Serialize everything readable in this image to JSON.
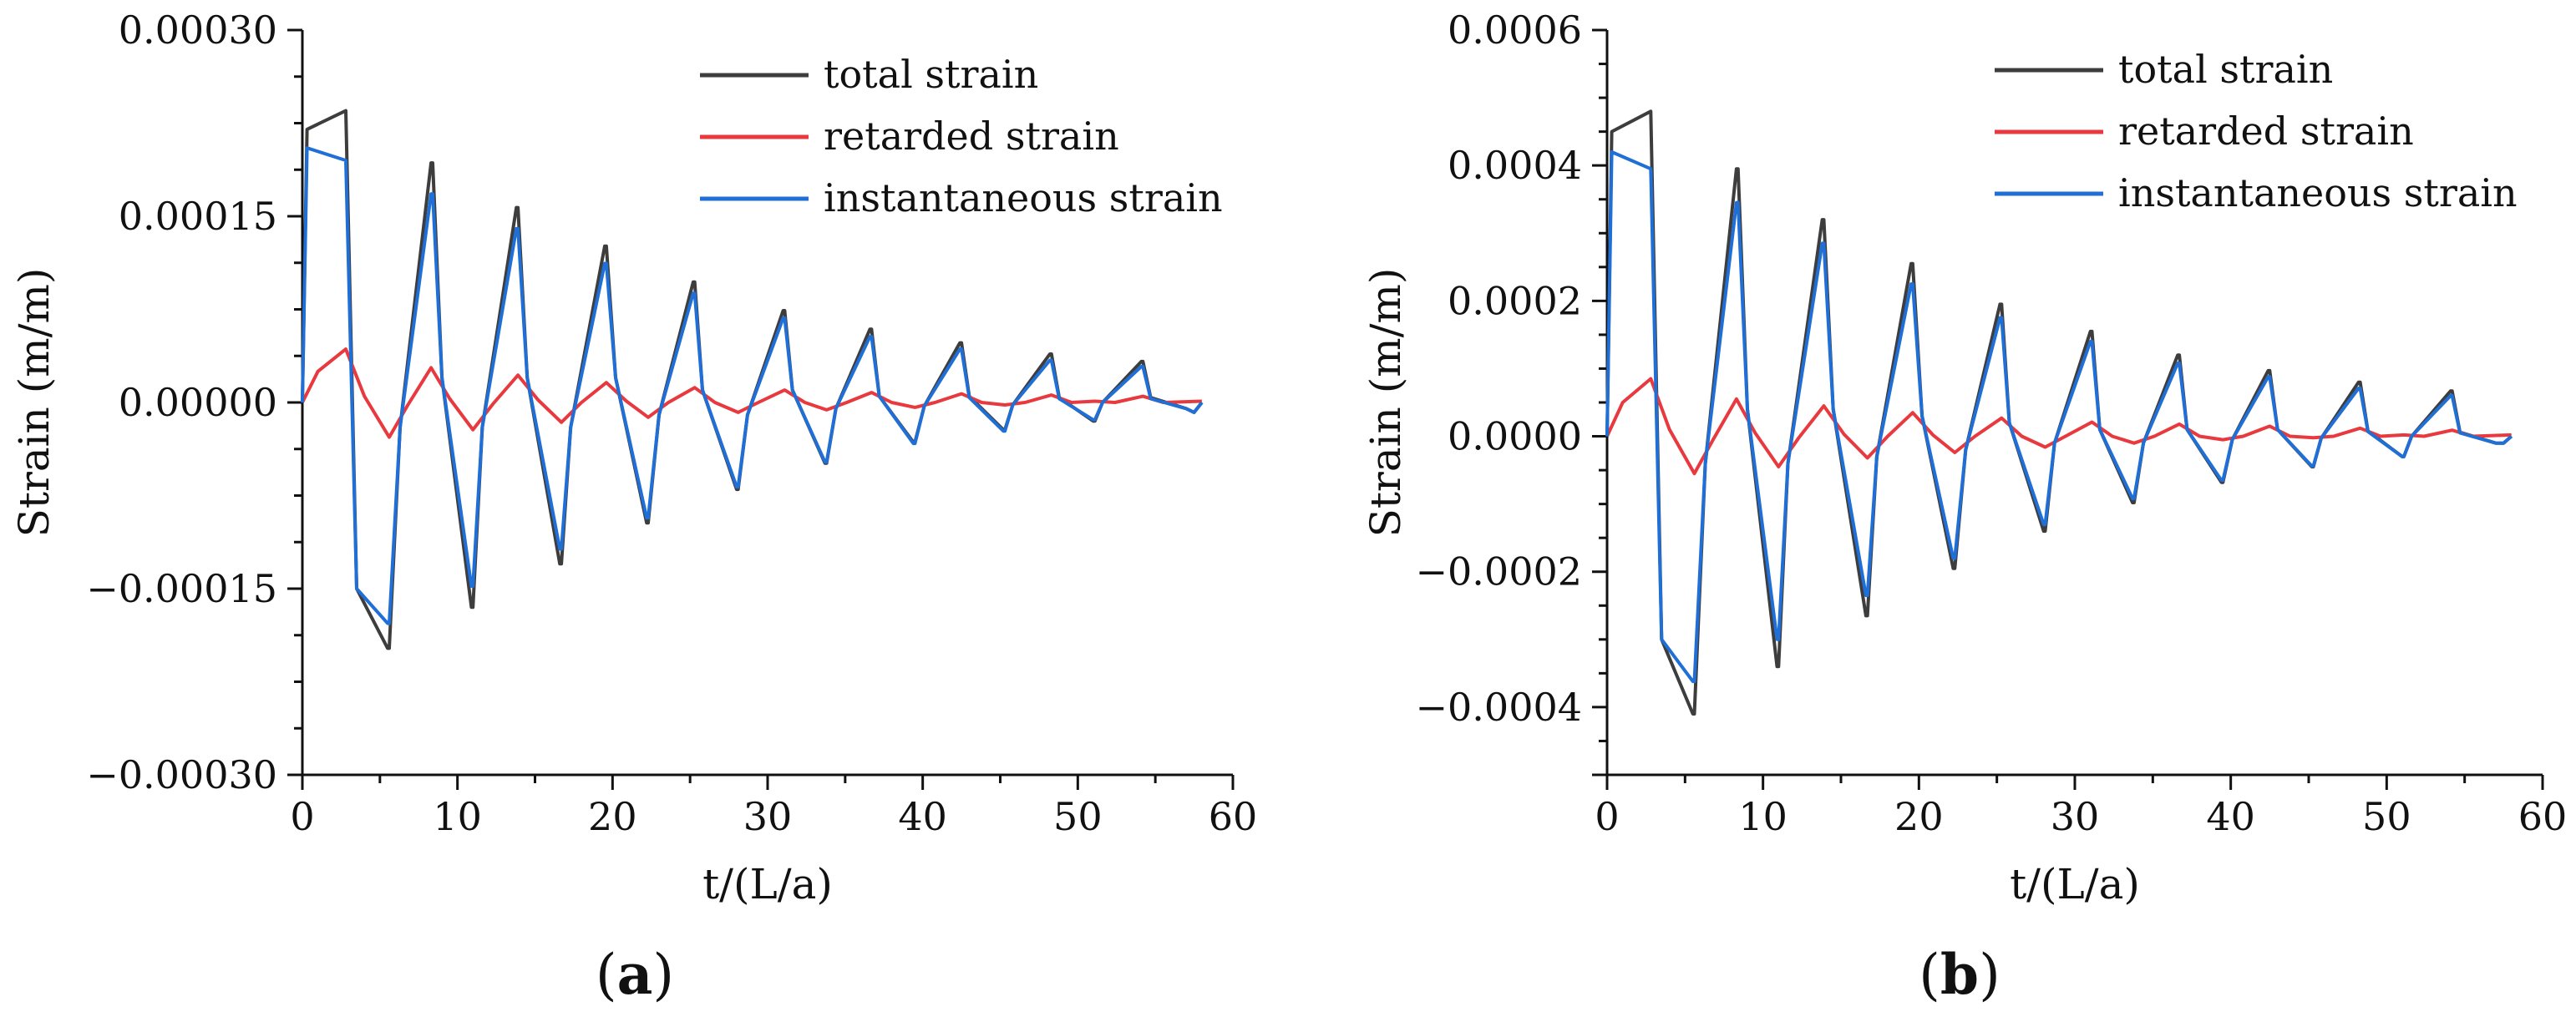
{
  "chart_data": [
    {
      "panel": "(a)",
      "type": "line",
      "xlabel": "t/(L/a)",
      "ylabel": "Strain (m/m)",
      "xlim": [
        0,
        60
      ],
      "ylim": [
        -0.0003,
        0.0003
      ],
      "xticks": [
        "0",
        "10",
        "20",
        "30",
        "40",
        "50",
        "60"
      ],
      "yticks": [
        "−0.00030",
        "−0.00015",
        "0.00000",
        "0.00015",
        "0.00030"
      ],
      "legend_position": "top-right",
      "colors": {
        "total": "#3d3d3d",
        "retarded": "#e8393f",
        "instantaneous": "#1f6fd6"
      },
      "legend": [
        "total strain",
        "retarded strain",
        "instantaneous strain"
      ],
      "series": [
        {
          "name": "total strain",
          "x": [
            0,
            0.3,
            2.8,
            3.5,
            5.5,
            5.6,
            6.3,
            8.3,
            8.4,
            9.0,
            10.9,
            11.0,
            11.6,
            13.8,
            13.9,
            14.5,
            16.6,
            16.7,
            17.3,
            19.5,
            19.6,
            20.2,
            22.2,
            22.3,
            23.0,
            25.2,
            25.3,
            25.8,
            28.0,
            28.1,
            28.7,
            31.0,
            31.1,
            31.6,
            33.7,
            33.8,
            34.4,
            36.6,
            36.7,
            37.2,
            39.4,
            39.5,
            40.1,
            42.4,
            42.5,
            43.0,
            45.2,
            45.3,
            45.8,
            48.2,
            48.3,
            48.8,
            51.0,
            51.1,
            51.6,
            54.1,
            54.2,
            54.7,
            57.0,
            57.5,
            58.0
          ],
          "values": [
            0,
            0.00022,
            0.000235,
            -0.00015,
            -0.000198,
            -0.000198,
            -2e-05,
            0.000193,
            0.000193,
            2e-05,
            -0.000165,
            -0.000165,
            -2e-05,
            0.000157,
            0.000157,
            2e-05,
            -0.00013,
            -0.00013,
            -2e-05,
            0.000126,
            0.000126,
            2e-05,
            -9.7e-05,
            -9.7e-05,
            -1e-05,
            9.7e-05,
            9.7e-05,
            1e-05,
            -7e-05,
            -7e-05,
            -1e-05,
            7.4e-05,
            7.4e-05,
            1e-05,
            -4.9e-05,
            -4.9e-05,
            -5e-06,
            5.9e-05,
            5.9e-05,
            5e-06,
            -3.2e-05,
            -3.2e-05,
            -3e-06,
            4.8e-05,
            4.8e-05,
            5e-06,
            -2.2e-05,
            -2.2e-05,
            -2e-06,
            3.9e-05,
            3.9e-05,
            4e-06,
            -1.5e-05,
            -1.5e-05,
            0,
            3.3e-05,
            3.3e-05,
            4e-06,
            -5e-06,
            -8e-06,
            0
          ]
        },
        {
          "name": "retarded strain",
          "x": [
            0,
            1,
            2.8,
            4.0,
            5.6,
            6.8,
            8.3,
            9.5,
            11.0,
            12.3,
            13.9,
            15.2,
            16.7,
            18.0,
            19.6,
            20.9,
            22.3,
            23.6,
            25.3,
            26.6,
            28.1,
            29.4,
            31.1,
            32.4,
            33.8,
            35.1,
            36.7,
            38.0,
            39.5,
            40.8,
            42.5,
            43.8,
            45.3,
            46.6,
            48.3,
            49.6,
            51.1,
            52.4,
            54.2,
            55.5,
            58.0
          ],
          "values": [
            0,
            2.5e-05,
            4.3e-05,
            5e-06,
            -2.8e-05,
            -2e-06,
            2.8e-05,
            3e-06,
            -2.2e-05,
            -1e-06,
            2.2e-05,
            2e-06,
            -1.6e-05,
            0,
            1.6e-05,
            1e-06,
            -1.2e-05,
            0,
            1.2e-05,
            0,
            -8e-06,
            0,
            1e-05,
            0,
            -6e-06,
            0,
            8e-06,
            0,
            -4e-06,
            0,
            7e-06,
            0,
            -2e-06,
            0,
            6e-06,
            0,
            1e-06,
            0,
            5e-06,
            0,
            1e-06
          ]
        },
        {
          "name": "instantaneous strain",
          "x": [
            0,
            0.3,
            2.8,
            3.5,
            5.5,
            5.6,
            6.3,
            8.3,
            8.4,
            9.0,
            10.9,
            11.0,
            11.6,
            13.8,
            13.9,
            14.5,
            16.6,
            16.7,
            17.3,
            19.5,
            19.6,
            20.2,
            22.2,
            22.3,
            23.0,
            25.2,
            25.3,
            25.8,
            28.0,
            28.1,
            28.7,
            31.0,
            31.1,
            31.6,
            33.7,
            33.8,
            34.4,
            36.6,
            36.7,
            37.2,
            39.4,
            39.5,
            40.1,
            42.4,
            42.5,
            43.0,
            45.2,
            45.3,
            45.8,
            48.2,
            48.3,
            48.8,
            51.0,
            51.1,
            51.6,
            54.1,
            54.2,
            54.7,
            57.0,
            57.5,
            58.0
          ],
          "values": [
            0,
            0.000205,
            0.000195,
            -0.00015,
            -0.000178,
            -0.000178,
            -2e-05,
            0.000168,
            0.000168,
            2e-05,
            -0.000148,
            -0.000148,
            -2e-05,
            0.00014,
            0.00014,
            2e-05,
            -0.000118,
            -0.000118,
            -2e-05,
            0.000112,
            0.000112,
            2e-05,
            -9.3e-05,
            -9.3e-05,
            -1e-05,
            8.8e-05,
            8.8e-05,
            1e-05,
            -6.8e-05,
            -6.8e-05,
            -1e-05,
            6.8e-05,
            6.8e-05,
            1e-05,
            -4.8e-05,
            -4.8e-05,
            -5e-06,
            5.3e-05,
            5.3e-05,
            5e-06,
            -3.3e-05,
            -3.3e-05,
            -3e-06,
            4.3e-05,
            4.3e-05,
            4e-06,
            -2.3e-05,
            -2.3e-05,
            -2e-06,
            3.4e-05,
            3.4e-05,
            3e-06,
            -1.4e-05,
            -1.4e-05,
            0,
            2.9e-05,
            2.9e-05,
            3e-06,
            -5e-06,
            -8e-06,
            0
          ]
        }
      ]
    },
    {
      "panel": "(b)",
      "type": "line",
      "xlabel": "t/(L/a)",
      "ylabel": "Strain (m/m)",
      "xlim": [
        0,
        60
      ],
      "ylim": [
        -0.0005,
        0.0006
      ],
      "xticks": [
        "0",
        "10",
        "20",
        "30",
        "40",
        "50",
        "60"
      ],
      "yticks": [
        "−0.0004",
        "−0.0002",
        "0.0000",
        "0.0002",
        "0.0004",
        "0.0006"
      ],
      "legend_position": "top-right",
      "colors": {
        "total": "#3d3d3d",
        "retarded": "#e8393f",
        "instantaneous": "#1f6fd6"
      },
      "legend": [
        "total strain",
        "retarded strain",
        "instantaneous strain"
      ],
      "series": [
        {
          "name": "total strain",
          "x": [
            0,
            0.3,
            2.8,
            3.5,
            5.5,
            5.6,
            6.3,
            8.3,
            8.4,
            9.0,
            10.9,
            11.0,
            11.6,
            13.8,
            13.9,
            14.5,
            16.6,
            16.7,
            17.3,
            19.5,
            19.6,
            20.2,
            22.2,
            22.3,
            23.0,
            25.2,
            25.3,
            25.8,
            28.0,
            28.1,
            28.7,
            31.0,
            31.1,
            31.6,
            33.7,
            33.8,
            34.4,
            36.6,
            36.7,
            37.2,
            39.4,
            39.5,
            40.1,
            42.4,
            42.5,
            43.0,
            45.2,
            45.3,
            45.8,
            48.2,
            48.3,
            48.8,
            51.0,
            51.1,
            51.6,
            54.1,
            54.2,
            54.7,
            57.0,
            57.5,
            58.0
          ],
          "values": [
            0,
            0.00045,
            0.00048,
            -0.0003,
            -0.00041,
            -0.00041,
            -4e-05,
            0.000395,
            0.000395,
            4e-05,
            -0.00034,
            -0.00034,
            -4e-05,
            0.00032,
            0.00032,
            4e-05,
            -0.000265,
            -0.000265,
            -3e-05,
            0.000255,
            0.000255,
            3e-05,
            -0.000195,
            -0.000195,
            -2e-05,
            0.000195,
            0.000195,
            2e-05,
            -0.00014,
            -0.00014,
            -1e-05,
            0.000155,
            0.000155,
            1e-05,
            -9.8e-05,
            -9.8e-05,
            -1e-05,
            0.00012,
            0.00012,
            1e-05,
            -6.8e-05,
            -6.8e-05,
            -5e-06,
            9.7e-05,
            9.7e-05,
            1e-05,
            -4.5e-05,
            -4.5e-05,
            -3e-06,
            8e-05,
            8e-05,
            8e-06,
            -3e-05,
            -3e-05,
            0,
            6.7e-05,
            6.7e-05,
            6e-06,
            -1e-05,
            -1e-05,
            0
          ]
        },
        {
          "name": "retarded strain",
          "x": [
            0,
            1,
            2.8,
            4.0,
            5.6,
            6.8,
            8.3,
            9.5,
            11.0,
            12.3,
            13.9,
            15.2,
            16.7,
            18.0,
            19.6,
            20.9,
            22.3,
            23.6,
            25.3,
            26.6,
            28.1,
            29.4,
            31.1,
            32.4,
            33.8,
            35.1,
            36.7,
            38.0,
            39.5,
            40.8,
            42.5,
            43.8,
            45.3,
            46.6,
            48.3,
            49.6,
            51.1,
            52.4,
            54.2,
            55.5,
            58.0
          ],
          "values": [
            0,
            5e-05,
            8.5e-05,
            1e-05,
            -5.5e-05,
            -5e-06,
            5.5e-05,
            5e-06,
            -4.5e-05,
            -2e-06,
            4.5e-05,
            3e-06,
            -3.2e-05,
            0,
            3.5e-05,
            2e-06,
            -2.4e-05,
            0,
            2.7e-05,
            0,
            -1.6e-05,
            0,
            2.1e-05,
            0,
            -1e-05,
            0,
            1.8e-05,
            0,
            -5e-06,
            0,
            1.5e-05,
            0,
            -2e-06,
            0,
            1.2e-05,
            0,
            2e-06,
            0,
            9e-06,
            0,
            2e-06
          ]
        },
        {
          "name": "instantaneous strain",
          "x": [
            0,
            0.3,
            2.8,
            3.5,
            5.5,
            5.6,
            6.3,
            8.3,
            8.4,
            9.0,
            10.9,
            11.0,
            11.6,
            13.8,
            13.9,
            14.5,
            16.6,
            16.7,
            17.3,
            19.5,
            19.6,
            20.2,
            22.2,
            22.3,
            23.0,
            25.2,
            25.3,
            25.8,
            28.0,
            28.1,
            28.7,
            31.0,
            31.1,
            31.6,
            33.7,
            33.8,
            34.4,
            36.6,
            36.7,
            37.2,
            39.4,
            39.5,
            40.1,
            42.4,
            42.5,
            43.0,
            45.2,
            45.3,
            45.8,
            48.2,
            48.3,
            48.8,
            51.0,
            51.1,
            51.6,
            54.1,
            54.2,
            54.7,
            57.0,
            57.5,
            58.0
          ],
          "values": [
            0,
            0.00042,
            0.000395,
            -0.0003,
            -0.000362,
            -0.000362,
            -4e-05,
            0.000345,
            0.000345,
            4e-05,
            -0.0003,
            -0.0003,
            -4e-05,
            0.000285,
            0.000285,
            4e-05,
            -0.000235,
            -0.000235,
            -3e-05,
            0.000225,
            0.000225,
            3e-05,
            -0.00018,
            -0.00018,
            -2e-05,
            0.000175,
            0.000175,
            2e-05,
            -0.00013,
            -0.00013,
            -1e-05,
            0.00014,
            0.00014,
            1e-05,
            -9.2e-05,
            -9.2e-05,
            -1e-05,
            0.000108,
            0.000108,
            1e-05,
            -6.5e-05,
            -6.5e-05,
            -5e-06,
            8.8e-05,
            8.8e-05,
            1e-05,
            -4.4e-05,
            -4.4e-05,
            -3e-06,
            7.1e-05,
            7.1e-05,
            7e-06,
            -3e-05,
            -3e-05,
            0,
            6e-05,
            6e-05,
            5e-06,
            -1e-05,
            -1e-05,
            0
          ]
        }
      ]
    }
  ]
}
